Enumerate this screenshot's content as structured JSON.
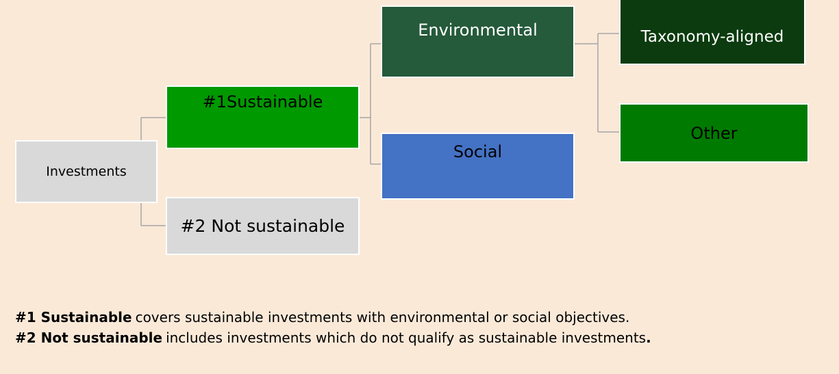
{
  "nodes": [
    {
      "label": "Investments"
    },
    {
      "label": "#1Sustainable"
    },
    {
      "label": "#2 Not sustainable"
    },
    {
      "label": "Environmental"
    },
    {
      "label": "Social"
    },
    {
      "label": "Taxonomy-aligned"
    },
    {
      "label": "Other"
    }
  ],
  "footnotes": [
    {
      "term": "#1 Sustainable",
      "text": "covers sustainable investments with environmental or social objectives."
    },
    {
      "term": "#2 Not sustainable",
      "text": "includes investments which do not qualify as sustainable investments",
      "end": "."
    }
  ]
}
